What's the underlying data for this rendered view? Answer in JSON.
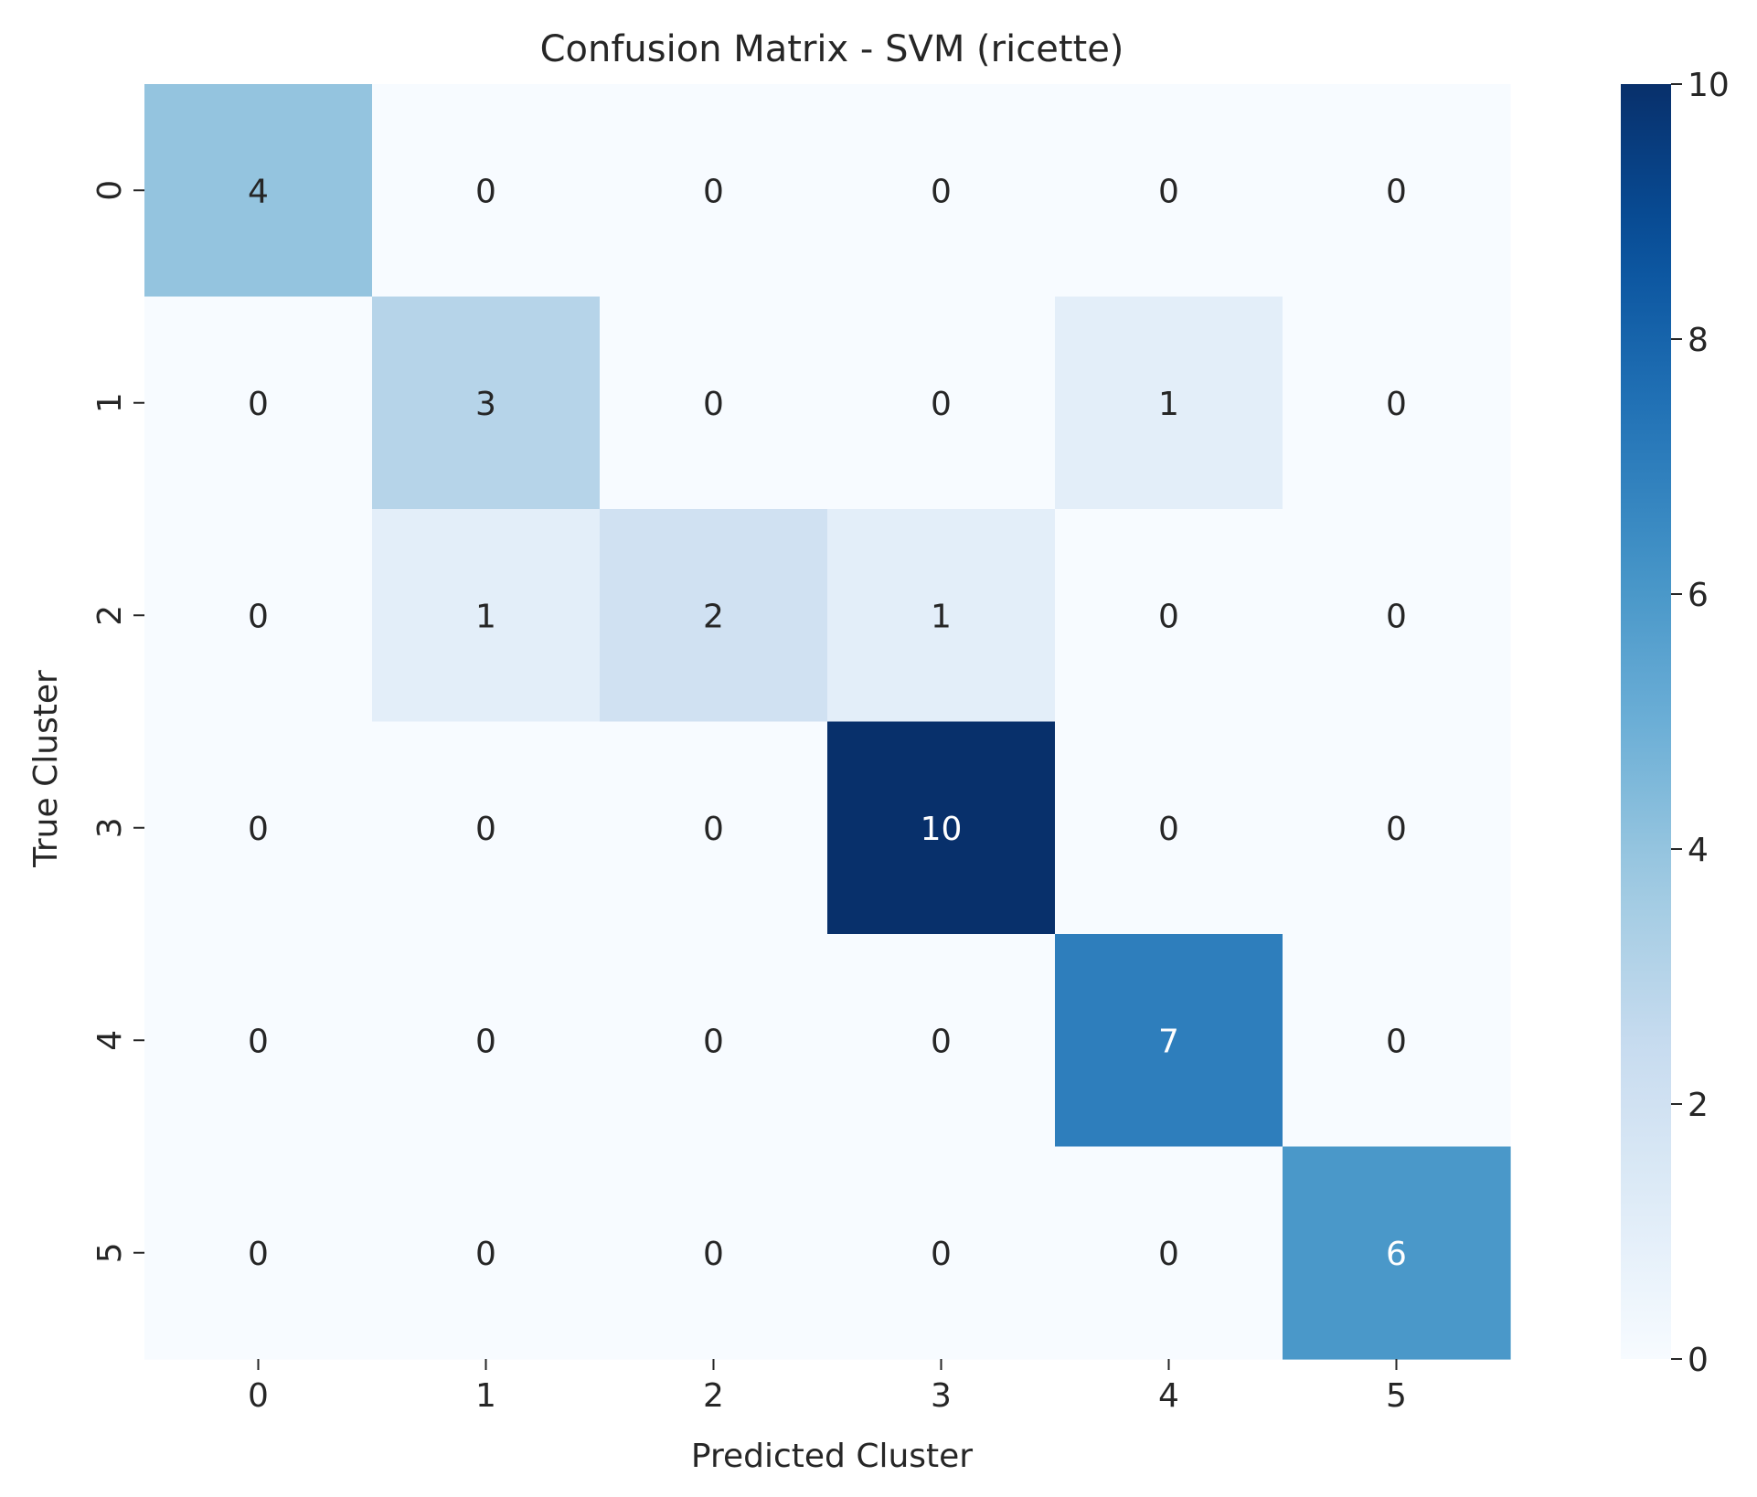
{
  "chart_data": {
    "type": "heatmap",
    "title": "Confusion Matrix - SVM (ricette)",
    "xlabel": "Predicted Cluster",
    "ylabel": "True Cluster",
    "x_categories": [
      "0",
      "1",
      "2",
      "3",
      "4",
      "5"
    ],
    "y_categories": [
      "0",
      "1",
      "2",
      "3",
      "4",
      "5"
    ],
    "matrix": [
      [
        4,
        0,
        0,
        0,
        0,
        0
      ],
      [
        0,
        3,
        0,
        0,
        1,
        0
      ],
      [
        0,
        1,
        2,
        1,
        0,
        0
      ],
      [
        0,
        0,
        0,
        10,
        0,
        0
      ],
      [
        0,
        0,
        0,
        0,
        7,
        0
      ],
      [
        0,
        0,
        0,
        0,
        0,
        6
      ]
    ],
    "colormap": "Blues",
    "colorbar": {
      "range": [
        0,
        10
      ],
      "ticks": [
        0,
        2,
        4,
        6,
        8,
        10
      ],
      "placement": "right"
    },
    "colors": {
      "low": "#f7fbff",
      "high": "#08306b",
      "text_dark": "#262626",
      "text_light": "#ffffff"
    }
  }
}
